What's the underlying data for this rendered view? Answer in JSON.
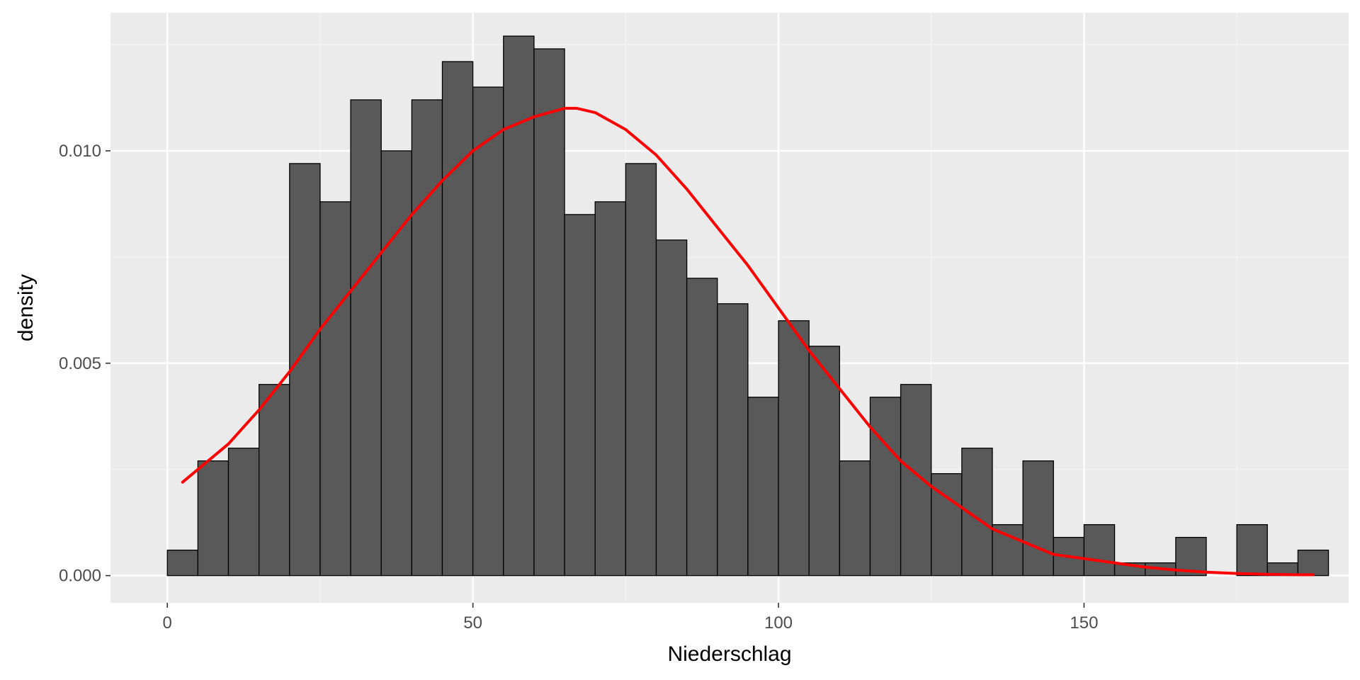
{
  "chart_data": {
    "type": "histogram",
    "xlabel": "Niederschlag",
    "ylabel": "density",
    "xlim": [
      -9.3,
      193.3
    ],
    "ylim": [
      -0.00064,
      0.01325
    ],
    "x_ticks": [
      0,
      50,
      100,
      150
    ],
    "x_tick_labels": [
      "0",
      "50",
      "100",
      "150"
    ],
    "y_ticks": [
      0.0,
      0.005,
      0.01
    ],
    "y_tick_labels": [
      "0.000",
      "0.005",
      "0.010"
    ],
    "grid": true,
    "legend": "none",
    "colors": {
      "panel": "#EBEBEB",
      "grid_major": "#FFFFFF",
      "grid_minor": "#F5F5F5",
      "bar_fill": "#595959",
      "bar_stroke": "#000000",
      "curve": "#FF0000"
    },
    "bins": [
      {
        "x0": 0.0,
        "x1": 5.0,
        "density": 0.0006
      },
      {
        "x0": 5.0,
        "x1": 10.0,
        "density": 0.0027
      },
      {
        "x0": 10.0,
        "x1": 15.0,
        "density": 0.003
      },
      {
        "x0": 15.0,
        "x1": 20.0,
        "density": 0.0045
      },
      {
        "x0": 20.0,
        "x1": 25.0,
        "density": 0.0097
      },
      {
        "x0": 25.0,
        "x1": 30.0,
        "density": 0.0088
      },
      {
        "x0": 30.0,
        "x1": 35.0,
        "density": 0.0112
      },
      {
        "x0": 35.0,
        "x1": 40.0,
        "density": 0.01
      },
      {
        "x0": 40.0,
        "x1": 45.0,
        "density": 0.0112
      },
      {
        "x0": 45.0,
        "x1": 50.0,
        "density": 0.0121
      },
      {
        "x0": 50.0,
        "x1": 55.0,
        "density": 0.0115
      },
      {
        "x0": 55.0,
        "x1": 60.0,
        "density": 0.0127
      },
      {
        "x0": 60.0,
        "x1": 65.0,
        "density": 0.0124
      },
      {
        "x0": 65.0,
        "x1": 70.0,
        "density": 0.0085
      },
      {
        "x0": 70.0,
        "x1": 75.0,
        "density": 0.0088
      },
      {
        "x0": 75.0,
        "x1": 80.0,
        "density": 0.0097
      },
      {
        "x0": 80.0,
        "x1": 85.0,
        "density": 0.0079
      },
      {
        "x0": 85.0,
        "x1": 90.0,
        "density": 0.007
      },
      {
        "x0": 90.0,
        "x1": 95.0,
        "density": 0.0064
      },
      {
        "x0": 95.0,
        "x1": 100.0,
        "density": 0.0042
      },
      {
        "x0": 100.0,
        "x1": 105.0,
        "density": 0.006
      },
      {
        "x0": 105.0,
        "x1": 110.0,
        "density": 0.0054
      },
      {
        "x0": 110.0,
        "x1": 115.0,
        "density": 0.0027
      },
      {
        "x0": 115.0,
        "x1": 120.0,
        "density": 0.0042
      },
      {
        "x0": 120.0,
        "x1": 125.0,
        "density": 0.0045
      },
      {
        "x0": 125.0,
        "x1": 130.0,
        "density": 0.0024
      },
      {
        "x0": 130.0,
        "x1": 135.0,
        "density": 0.003
      },
      {
        "x0": 135.0,
        "x1": 140.0,
        "density": 0.0012
      },
      {
        "x0": 140.0,
        "x1": 145.0,
        "density": 0.0027
      },
      {
        "x0": 145.0,
        "x1": 150.0,
        "density": 0.0009
      },
      {
        "x0": 150.0,
        "x1": 155.0,
        "density": 0.0012
      },
      {
        "x0": 155.0,
        "x1": 160.0,
        "density": 0.0003
      },
      {
        "x0": 160.0,
        "x1": 165.0,
        "density": 0.0003
      },
      {
        "x0": 165.0,
        "x1": 170.0,
        "density": 0.0009
      },
      {
        "x0": 170.0,
        "x1": 175.0,
        "density": 0.0
      },
      {
        "x0": 175.0,
        "x1": 180.0,
        "density": 0.0012
      },
      {
        "x0": 180.0,
        "x1": 185.0,
        "density": 0.0003
      },
      {
        "x0": 185.0,
        "x1": 190.0,
        "density": 0.0006
      }
    ],
    "density_curve": {
      "x": [
        2.5,
        5,
        10,
        15,
        20,
        25,
        30,
        35,
        40,
        45,
        50,
        55,
        60,
        65,
        67,
        70,
        75,
        80,
        85,
        90,
        95,
        100,
        105,
        110,
        115,
        120,
        125,
        130,
        135,
        140,
        145,
        150,
        155,
        160,
        165,
        170,
        175,
        180,
        185,
        187.5
      ],
      "y": [
        0.0022,
        0.0025,
        0.0031,
        0.0039,
        0.0048,
        0.0058,
        0.0067,
        0.0076,
        0.0085,
        0.0093,
        0.01,
        0.0105,
        0.0108,
        0.011,
        0.011,
        0.0109,
        0.0105,
        0.0099,
        0.0091,
        0.0082,
        0.0073,
        0.0063,
        0.0053,
        0.0044,
        0.0035,
        0.0027,
        0.0021,
        0.0016,
        0.0011,
        0.0008,
        0.0005,
        0.0004,
        0.0003,
        0.0002,
        0.00013,
        8e-05,
        5e-05,
        3e-05,
        2e-05,
        2e-05
      ]
    }
  }
}
